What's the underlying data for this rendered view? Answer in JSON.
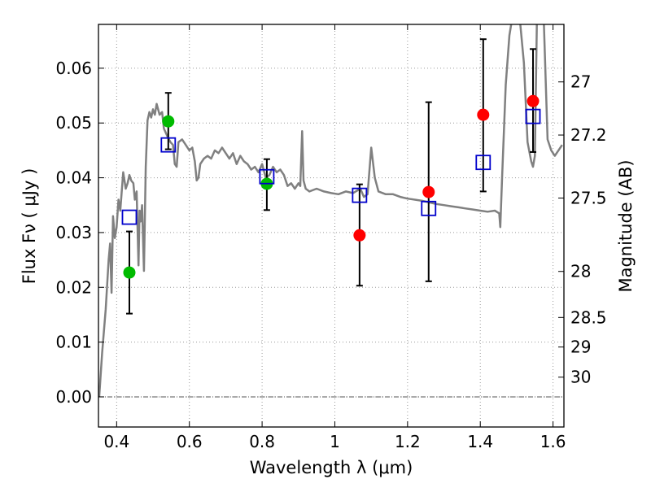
{
  "chart_data": {
    "type": "scatter",
    "title": "",
    "xlabel": "Wavelength  λ (μm)",
    "ylabel": "Flux  Fν  ( μJy )",
    "ylabel_right": "Magnitude (AB)",
    "xlim": [
      0.35,
      1.63
    ],
    "ylim": [
      -0.0055,
      0.068
    ],
    "grid": true,
    "x_ticks": [
      {
        "value": 0.4,
        "label": "0.4"
      },
      {
        "value": 0.6,
        "label": "0.6"
      },
      {
        "value": 0.8,
        "label": "0.8"
      },
      {
        "value": 1.0,
        "label": "1"
      },
      {
        "value": 1.2,
        "label": "1.2"
      },
      {
        "value": 1.4,
        "label": "1.4"
      },
      {
        "value": 1.6,
        "label": "1.6"
      }
    ],
    "y_ticks": [
      {
        "value": 0.0,
        "label": "0.00"
      },
      {
        "value": 0.01,
        "label": "0.01"
      },
      {
        "value": 0.02,
        "label": "0.02"
      },
      {
        "value": 0.03,
        "label": "0.03"
      },
      {
        "value": 0.04,
        "label": "0.04"
      },
      {
        "value": 0.05,
        "label": "0.05"
      },
      {
        "value": 0.06,
        "label": "0.06"
      }
    ],
    "right_ticks": [
      {
        "label": "27",
        "flux": 0.0575
      },
      {
        "label": "27.2",
        "flux": 0.0478
      },
      {
        "label": "27.5",
        "flux": 0.0363
      },
      {
        "label": "28",
        "flux": 0.0229
      },
      {
        "label": "28.5",
        "flux": 0.0145
      },
      {
        "label": "29",
        "flux": 0.0091
      },
      {
        "label": "30",
        "flux": 0.0036
      }
    ],
    "colors": {
      "model": "#808080",
      "green": "#00bb00",
      "red": "#ff0000",
      "square": "#0000cc",
      "errorbar": "#000000",
      "grid": "#9a9a9a"
    },
    "series": [
      {
        "kind": "line",
        "points": [
          [
            0.352,
            0.0
          ],
          [
            0.36,
            0.008
          ],
          [
            0.37,
            0.016
          ],
          [
            0.378,
            0.025
          ],
          [
            0.382,
            0.028
          ],
          [
            0.386,
            0.019
          ],
          [
            0.39,
            0.033
          ],
          [
            0.395,
            0.029
          ],
          [
            0.4,
            0.031
          ],
          [
            0.405,
            0.036
          ],
          [
            0.41,
            0.034
          ],
          [
            0.418,
            0.041
          ],
          [
            0.425,
            0.038
          ],
          [
            0.43,
            0.039
          ],
          [
            0.435,
            0.0405
          ],
          [
            0.44,
            0.0395
          ],
          [
            0.446,
            0.039
          ],
          [
            0.45,
            0.036
          ],
          [
            0.455,
            0.0375
          ],
          [
            0.46,
            0.024
          ],
          [
            0.463,
            0.034
          ],
          [
            0.466,
            0.032
          ],
          [
            0.47,
            0.035
          ],
          [
            0.475,
            0.023
          ],
          [
            0.48,
            0.042
          ],
          [
            0.485,
            0.0505
          ],
          [
            0.49,
            0.052
          ],
          [
            0.495,
            0.051
          ],
          [
            0.5,
            0.0525
          ],
          [
            0.505,
            0.0515
          ],
          [
            0.51,
            0.0535
          ],
          [
            0.518,
            0.0515
          ],
          [
            0.525,
            0.052
          ],
          [
            0.53,
            0.049
          ],
          [
            0.54,
            0.0475
          ],
          [
            0.548,
            0.0465
          ],
          [
            0.555,
            0.046
          ],
          [
            0.56,
            0.0425
          ],
          [
            0.565,
            0.042
          ],
          [
            0.57,
            0.0465
          ],
          [
            0.58,
            0.047
          ],
          [
            0.59,
            0.046
          ],
          [
            0.6,
            0.045
          ],
          [
            0.608,
            0.0455
          ],
          [
            0.615,
            0.043
          ],
          [
            0.62,
            0.0395
          ],
          [
            0.625,
            0.04
          ],
          [
            0.63,
            0.0425
          ],
          [
            0.64,
            0.0435
          ],
          [
            0.65,
            0.044
          ],
          [
            0.66,
            0.0435
          ],
          [
            0.67,
            0.045
          ],
          [
            0.68,
            0.0445
          ],
          [
            0.69,
            0.0455
          ],
          [
            0.7,
            0.0445
          ],
          [
            0.71,
            0.0435
          ],
          [
            0.72,
            0.0445
          ],
          [
            0.73,
            0.0425
          ],
          [
            0.74,
            0.044
          ],
          [
            0.75,
            0.043
          ],
          [
            0.76,
            0.0425
          ],
          [
            0.77,
            0.0415
          ],
          [
            0.78,
            0.042
          ],
          [
            0.79,
            0.041
          ],
          [
            0.8,
            0.0425
          ],
          [
            0.81,
            0.04
          ],
          [
            0.82,
            0.0405
          ],
          [
            0.83,
            0.042
          ],
          [
            0.84,
            0.041
          ],
          [
            0.85,
            0.0415
          ],
          [
            0.86,
            0.0405
          ],
          [
            0.87,
            0.0385
          ],
          [
            0.88,
            0.039
          ],
          [
            0.89,
            0.038
          ],
          [
            0.9,
            0.039
          ],
          [
            0.905,
            0.0385
          ],
          [
            0.91,
            0.0485
          ],
          [
            0.914,
            0.0395
          ],
          [
            0.92,
            0.038
          ],
          [
            0.93,
            0.0375
          ],
          [
            0.95,
            0.038
          ],
          [
            0.97,
            0.0375
          ],
          [
            0.99,
            0.0372
          ],
          [
            1.01,
            0.037
          ],
          [
            1.03,
            0.0375
          ],
          [
            1.05,
            0.0372
          ],
          [
            1.07,
            0.038
          ],
          [
            1.08,
            0.0365
          ],
          [
            1.09,
            0.037
          ],
          [
            1.1,
            0.0455
          ],
          [
            1.11,
            0.04
          ],
          [
            1.12,
            0.0375
          ],
          [
            1.14,
            0.037
          ],
          [
            1.16,
            0.037
          ],
          [
            1.18,
            0.0365
          ],
          [
            1.2,
            0.0362
          ],
          [
            1.22,
            0.036
          ],
          [
            1.24,
            0.0358
          ],
          [
            1.26,
            0.0355
          ],
          [
            1.28,
            0.0352
          ],
          [
            1.3,
            0.035
          ],
          [
            1.32,
            0.0348
          ],
          [
            1.34,
            0.0346
          ],
          [
            1.36,
            0.0344
          ],
          [
            1.38,
            0.0342
          ],
          [
            1.4,
            0.034
          ],
          [
            1.42,
            0.0338
          ],
          [
            1.44,
            0.034
          ],
          [
            1.452,
            0.0335
          ],
          [
            1.455,
            0.031
          ],
          [
            1.46,
            0.04
          ],
          [
            1.47,
            0.057
          ],
          [
            1.48,
            0.066
          ],
          [
            1.49,
            0.07
          ],
          [
            1.5,
            0.07
          ],
          [
            1.51,
            0.068
          ],
          [
            1.52,
            0.061
          ],
          [
            1.53,
            0.0465
          ],
          [
            1.54,
            0.043
          ],
          [
            1.545,
            0.042
          ],
          [
            1.55,
            0.044
          ],
          [
            1.556,
            0.07
          ],
          [
            1.565,
            0.07
          ],
          [
            1.575,
            0.068
          ],
          [
            1.585,
            0.047
          ],
          [
            1.595,
            0.045
          ],
          [
            1.605,
            0.044
          ],
          [
            1.615,
            0.045
          ],
          [
            1.625,
            0.046
          ]
        ]
      },
      {
        "kind": "circle",
        "color_key": "green",
        "points": [
          [
            0.435,
            0.0227
          ],
          [
            0.542,
            0.0503
          ],
          [
            0.813,
            0.0389
          ]
        ]
      },
      {
        "kind": "circle",
        "color_key": "red",
        "points": [
          [
            1.068,
            0.0295
          ],
          [
            1.258,
            0.0374
          ],
          [
            1.408,
            0.0515
          ],
          [
            1.545,
            0.054
          ]
        ]
      },
      {
        "kind": "square",
        "color_key": "square",
        "points": [
          [
            0.435,
            0.0328
          ],
          [
            0.542,
            0.046
          ],
          [
            0.813,
            0.0402
          ],
          [
            1.068,
            0.0368
          ],
          [
            1.258,
            0.0344
          ],
          [
            1.408,
            0.0428
          ],
          [
            1.545,
            0.0512
          ]
        ]
      },
      {
        "kind": "errorbar",
        "bars": [
          {
            "x": 0.435,
            "lo": 0.0152,
            "hi": 0.0302
          },
          {
            "x": 0.542,
            "lo": 0.0452,
            "hi": 0.0555
          },
          {
            "x": 0.813,
            "lo": 0.0341,
            "hi": 0.0434
          },
          {
            "x": 1.068,
            "lo": 0.0203,
            "hi": 0.0388
          },
          {
            "x": 1.258,
            "lo": 0.0211,
            "hi": 0.0538
          },
          {
            "x": 1.408,
            "lo": 0.0375,
            "hi": 0.0653
          },
          {
            "x": 1.545,
            "lo": 0.0447,
            "hi": 0.0635
          }
        ]
      }
    ]
  }
}
